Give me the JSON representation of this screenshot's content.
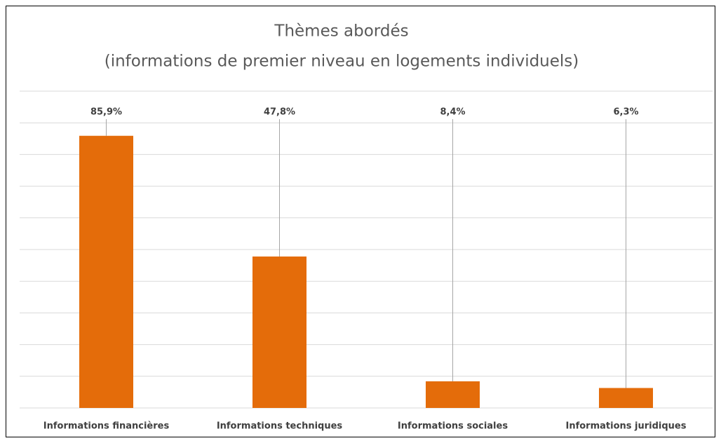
{
  "chart_data": {
    "type": "bar",
    "title": [
      "Thèmes abordés",
      "(informations de premier niveau en logements individuels)"
    ],
    "categories": [
      "Informations financières",
      "Informations techniques",
      "Informations sociales",
      "Informations juridiques"
    ],
    "values": [
      85.9,
      47.8,
      8.4,
      6.3
    ],
    "value_labels": [
      "85,9%",
      "47,8%",
      "8,4%",
      "6,3%"
    ],
    "color": "#e46c0a",
    "ylim": [
      0,
      100
    ],
    "yticks": [
      0,
      10,
      20,
      30,
      40,
      50,
      60,
      70,
      80,
      90,
      100
    ],
    "grid": true
  }
}
